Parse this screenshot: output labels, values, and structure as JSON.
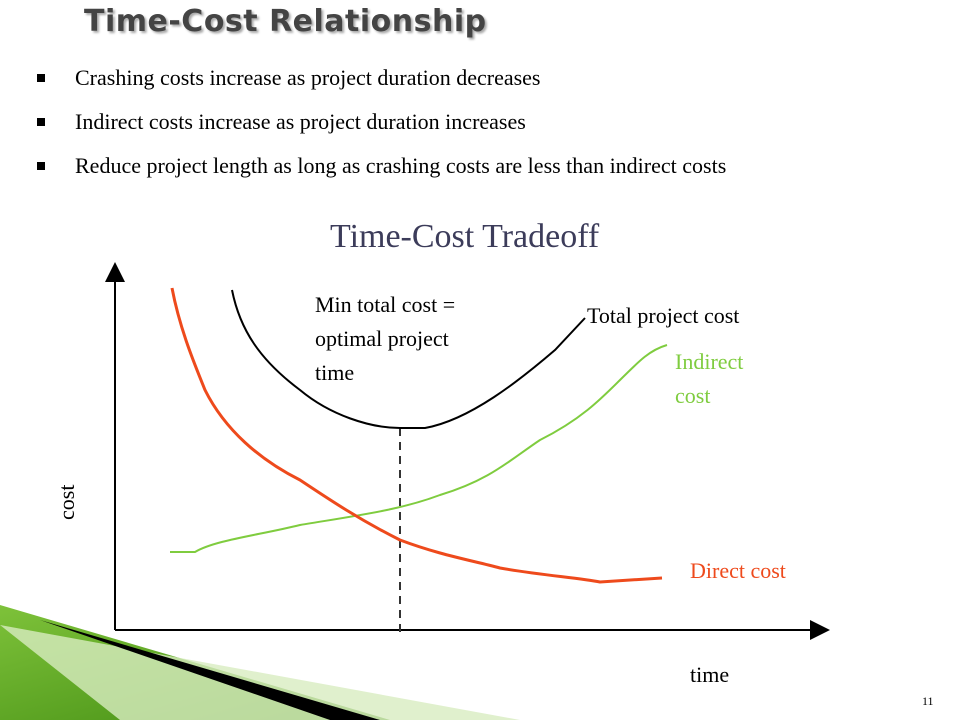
{
  "header": {
    "title": "Time-Cost Relationship"
  },
  "bullets": [
    "Crashing costs increase as project duration decreases",
    "Indirect costs increase as project duration increases",
    "Reduce project length as long as crashing costs are less than indirect costs"
  ],
  "diagram": {
    "title": "Time-Cost Tradeoff",
    "y_axis_label": "cost",
    "x_axis_label": "time",
    "min_label": [
      "Min total cost =",
      "optimal project",
      "time"
    ],
    "total_label": "Total project cost",
    "indirect_label": [
      "Indirect",
      "cost"
    ],
    "direct_label": "Direct cost"
  },
  "page_number": "11"
}
